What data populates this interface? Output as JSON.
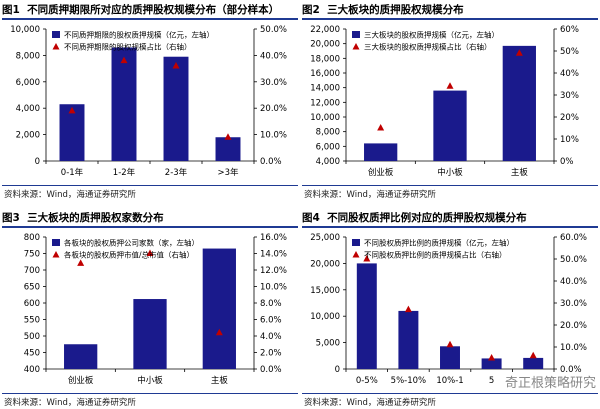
{
  "source_text": "资料来源：Wind，海通证券研究所",
  "watermark": "奇正根策略研究",
  "colors": {
    "bar": "#1a1a8c",
    "marker": "#c00000",
    "title_rule": "#1f3a93"
  },
  "charts": {
    "c1": {
      "fig": "图1",
      "title": "不同质押期限所对应的质押股权规模分布（部分样本）"
    },
    "c2": {
      "fig": "图2",
      "title": "三大板块的质押股权规模分布"
    },
    "c3": {
      "fig": "图3",
      "title": "三大板块的质押股权家数分布"
    },
    "c4": {
      "fig": "图4",
      "title": "不同股权质押比例对应的质押股权规模分布"
    }
  },
  "chart_data": [
    {
      "id": "c1",
      "type": "bar",
      "categories": [
        "0-1年",
        "1-2年",
        "2-3年",
        ">3年"
      ],
      "series": [
        {
          "name": "不同质押期限的股权质押规模（亿元，左轴）",
          "axis": "left",
          "kind": "bar",
          "values": [
            4300,
            8600,
            7900,
            1800
          ]
        },
        {
          "name": "不同质押期限的股权规模占比（右轴）",
          "axis": "right",
          "kind": "marker",
          "values": [
            0.19,
            0.38,
            0.36,
            0.09
          ]
        }
      ],
      "ylim_left": [
        0,
        10000
      ],
      "yticks_left": [
        "0",
        "2,000",
        "4,000",
        "6,000",
        "8,000",
        "10,000"
      ],
      "ylim_right": [
        0,
        0.5
      ],
      "yticks_right": [
        "0.0%",
        "10.0%",
        "20.0%",
        "30.0%",
        "40.0%",
        "50.0%"
      ],
      "legend": "top-left"
    },
    {
      "id": "c2",
      "type": "bar",
      "categories": [
        "创业板",
        "中小板",
        "主板"
      ],
      "series": [
        {
          "name": "三大板块的股权质押规模（亿元，左轴）",
          "axis": "left",
          "kind": "bar",
          "values": [
            6400,
            13600,
            19700
          ]
        },
        {
          "name": "三大板块的股权质押规模占比（右轴）",
          "axis": "right",
          "kind": "marker",
          "values": [
            0.15,
            0.34,
            0.49
          ]
        }
      ],
      "ylim_left": [
        4000,
        22000
      ],
      "yticks_left": [
        "4,000",
        "6,000",
        "8,000",
        "10,000",
        "12,000",
        "14,000",
        "16,000",
        "18,000",
        "20,000",
        "22,000"
      ],
      "ylim_right": [
        0,
        0.6
      ],
      "yticks_right": [
        "0%",
        "10%",
        "20%",
        "30%",
        "40%",
        "50%",
        "60%"
      ],
      "legend": "top-left"
    },
    {
      "id": "c3",
      "type": "bar",
      "categories": [
        "创业板",
        "中小板",
        "主板"
      ],
      "series": [
        {
          "name": "各板块的股权质押公司家数（家，左轴）",
          "axis": "left",
          "kind": "bar",
          "values": [
            475,
            612,
            765
          ]
        },
        {
          "name": "各板块的股权质押市值/总市值（右轴）",
          "axis": "right",
          "kind": "marker",
          "values": [
            0.128,
            0.14,
            0.044
          ]
        }
      ],
      "ylim_left": [
        400,
        800
      ],
      "yticks_left": [
        "400",
        "450",
        "500",
        "550",
        "600",
        "650",
        "700",
        "750",
        "800"
      ],
      "ylim_right": [
        0,
        0.16
      ],
      "yticks_right": [
        "0.0%",
        "2.0%",
        "4.0%",
        "6.0%",
        "8.0%",
        "10.0%",
        "12.0%",
        "14.0%",
        "16.0%"
      ],
      "legend": "top-left"
    },
    {
      "id": "c4",
      "type": "bar",
      "categories": [
        "0-5%",
        "5%-10%",
        "10%-1",
        "5",
        ""
      ],
      "series": [
        {
          "name": "不同股权质押比例的质押规模（亿元，左轴）",
          "axis": "left",
          "kind": "bar",
          "values": [
            20000,
            11000,
            4300,
            2000,
            2100
          ]
        },
        {
          "name": "不同股权质押比例的质押规模占比（右轴）",
          "axis": "right",
          "kind": "marker",
          "values": [
            0.5,
            0.27,
            0.11,
            0.05,
            0.06
          ]
        }
      ],
      "ylim_left": [
        0,
        25000
      ],
      "yticks_left": [
        "0",
        "5,000",
        "10,000",
        "15,000",
        "20,000",
        "25,000"
      ],
      "ylim_right": [
        0,
        0.6
      ],
      "yticks_right": [
        "0.0%",
        "10.0%",
        "20.0%",
        "30.0%",
        "40.0%",
        "50.0%",
        "60.0%"
      ],
      "legend": "top-left"
    }
  ]
}
